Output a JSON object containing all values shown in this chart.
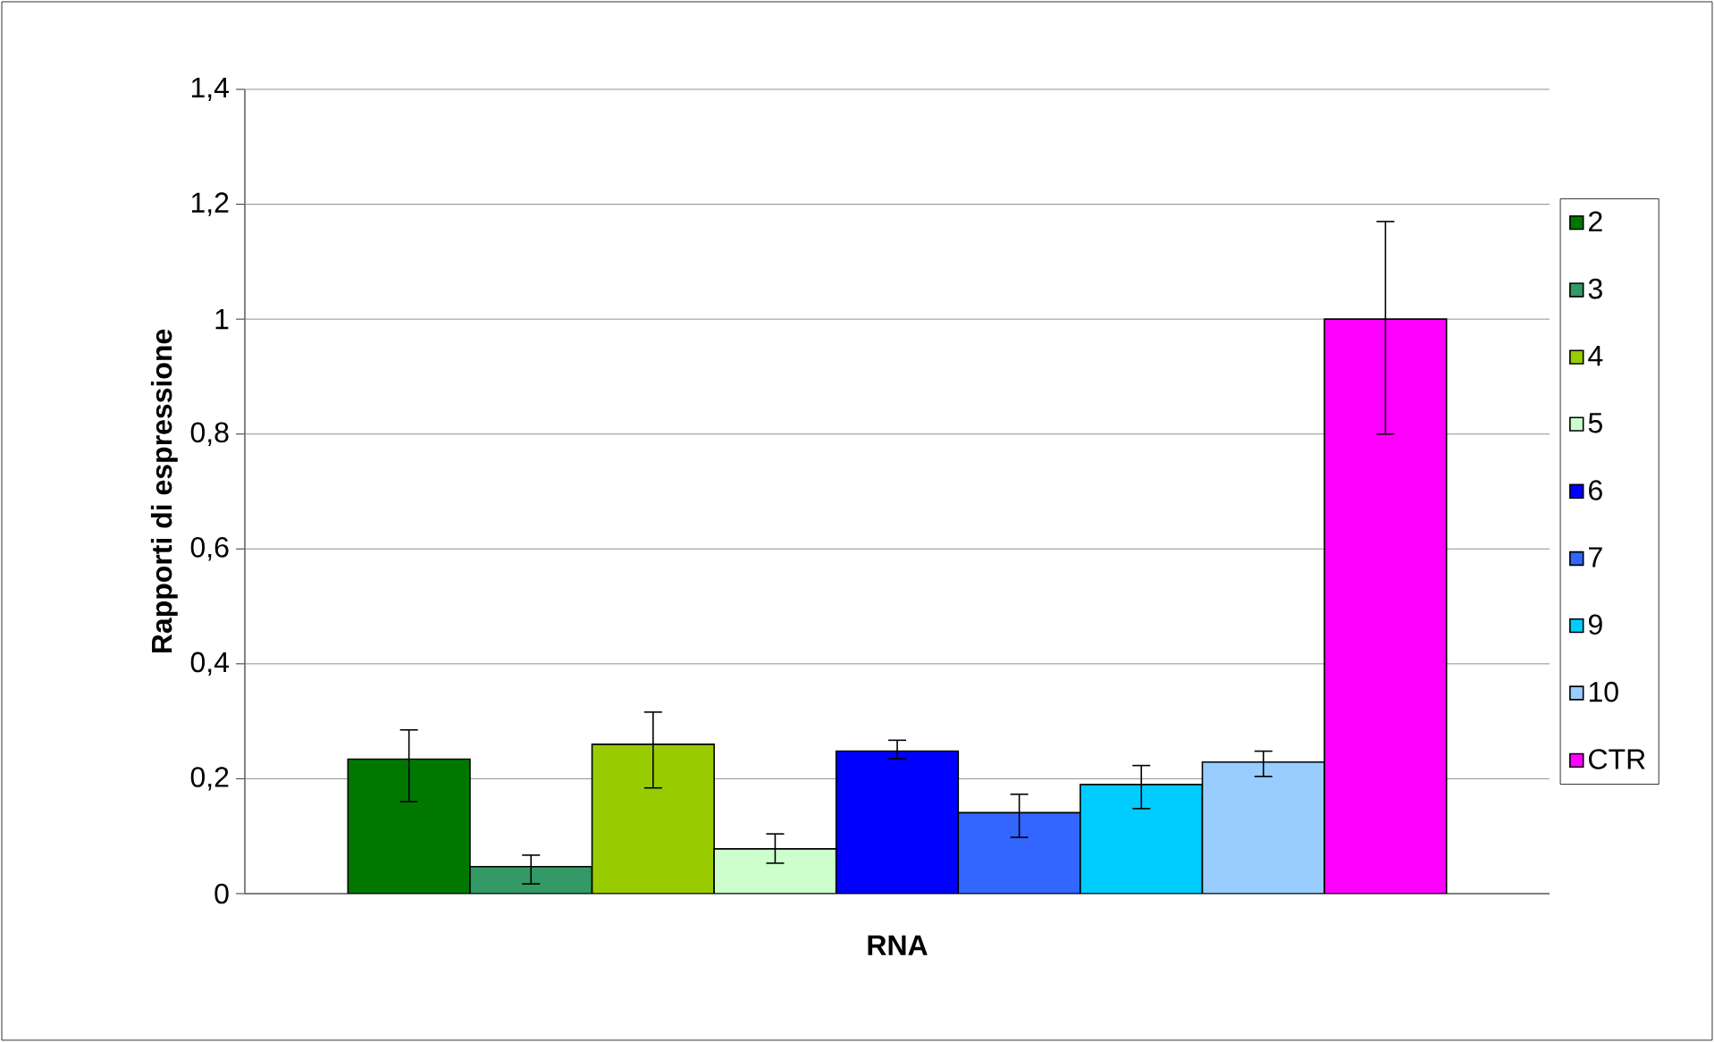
{
  "chart_data": {
    "type": "bar",
    "xlabel": "RNA",
    "ylabel": "Rapporti di espressione",
    "categories": [
      null
    ],
    "series": [
      {
        "name": "2",
        "color": "#007800",
        "values": [
          0.234
        ],
        "errors": [
          [
            0.16,
            0.285
          ]
        ]
      },
      {
        "name": "3",
        "color": "#339966",
        "values": [
          0.047
        ],
        "errors": [
          [
            0.017,
            0.067
          ]
        ]
      },
      {
        "name": "4",
        "color": "#99cc00",
        "values": [
          0.26
        ],
        "errors": [
          [
            0.184,
            0.316
          ]
        ]
      },
      {
        "name": "5",
        "color": "#ccffcc",
        "values": [
          0.078
        ],
        "errors": [
          [
            0.053,
            0.104
          ]
        ]
      },
      {
        "name": "6",
        "color": "#0000ff",
        "values": [
          0.248
        ],
        "errors": [
          [
            0.235,
            0.267
          ]
        ]
      },
      {
        "name": "7",
        "color": "#3366ff",
        "values": [
          0.141
        ],
        "errors": [
          [
            0.098,
            0.173
          ]
        ]
      },
      {
        "name": "9",
        "color": "#00ccff",
        "values": [
          0.19
        ],
        "errors": [
          [
            0.148,
            0.223
          ]
        ]
      },
      {
        "name": "10",
        "color": "#99ccff",
        "values": [
          0.229
        ],
        "errors": [
          [
            0.204,
            0.248
          ]
        ]
      },
      {
        "name": "CTR",
        "color": "#ff00ff",
        "values": [
          1.0
        ],
        "errors": [
          [
            0.8,
            1.17
          ]
        ]
      }
    ],
    "ylim": [
      0,
      1.4
    ],
    "yticks": [
      0,
      {
        "value": 0.2,
        "label": "0,2"
      },
      {
        "value": 0.4,
        "label": "0,4"
      },
      {
        "value": 0.6,
        "label": "0,6"
      },
      {
        "value": 0.8,
        "label": "0,8"
      },
      1,
      {
        "value": 1.2,
        "label": "1,2"
      },
      {
        "value": 1.4,
        "label": "1,4"
      }
    ],
    "grid": "y",
    "legend": "right"
  }
}
